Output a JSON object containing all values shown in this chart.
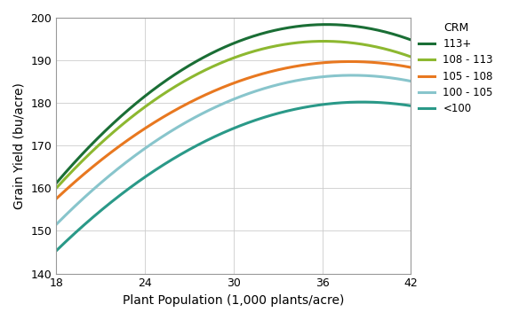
{
  "xlabel": "Plant Population (1,000 plants/acre)",
  "ylabel": "Grain Yield (bu/acre)",
  "legend_title": "CRM",
  "xlim": [
    18,
    42
  ],
  "ylim": [
    140,
    200
  ],
  "xticks": [
    18,
    24,
    30,
    36,
    42
  ],
  "yticks": [
    140,
    150,
    160,
    170,
    180,
    190,
    200
  ],
  "curves": [
    {
      "label": "113+",
      "color": "#1a6e35",
      "pts_x": [
        18,
        24,
        30,
        36,
        42
      ],
      "pts_y": [
        161,
        182,
        194,
        198,
        195
      ]
    },
    {
      "label": "108 - 113",
      "color": "#8db830",
      "pts_x": [
        18,
        24,
        30,
        36,
        42
      ],
      "pts_y": [
        160,
        179,
        191,
        194,
        191
      ]
    },
    {
      "label": "105 - 108",
      "color": "#e87820",
      "pts_x": [
        18,
        24,
        30,
        36,
        42
      ],
      "pts_y": [
        158,
        173,
        185,
        190,
        188
      ]
    },
    {
      "label": "100 - 105",
      "color": "#88c5cc",
      "pts_x": [
        18,
        24,
        30,
        36,
        42
      ],
      "pts_y": [
        152,
        168,
        182,
        186,
        185
      ]
    },
    {
      "label": "<100",
      "color": "#2a9988",
      "pts_x": [
        18,
        24,
        30,
        36,
        42
      ],
      "pts_y": [
        146,
        161,
        175,
        180,
        179
      ]
    }
  ],
  "figsize": [
    5.75,
    3.61
  ],
  "dpi": 100,
  "bg_color": "#ffffff",
  "grid_color": "#cccccc",
  "spine_color": "#999999",
  "linewidth": 2.2,
  "xlabel_fontsize": 10,
  "ylabel_fontsize": 10,
  "tick_fontsize": 9,
  "legend_fontsize": 8.5,
  "legend_title_fontsize": 9
}
